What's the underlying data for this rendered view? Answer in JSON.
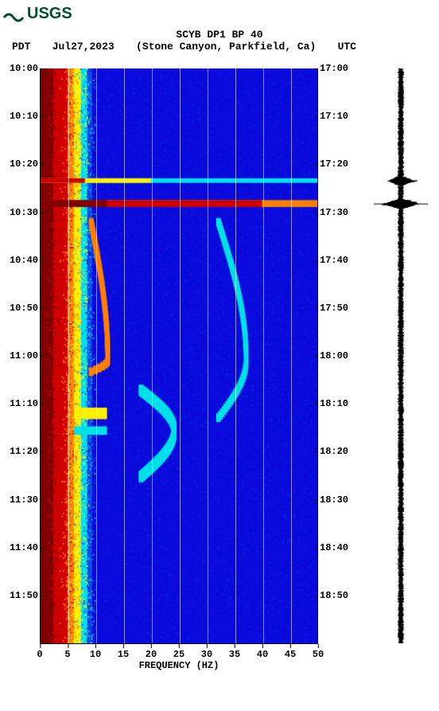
{
  "logo": {
    "text": "USGS",
    "color": "#004d33"
  },
  "header": {
    "title": "SCYB DP1 BP 40",
    "tz_left": "PDT",
    "date": "Jul27,2023",
    "station": "(Stone Canyon, Parkfield, Ca)",
    "tz_right": "UTC"
  },
  "spectrogram": {
    "type": "heatmap",
    "xlabel": "FREQUENCY (HZ)",
    "xlim": [
      0,
      50
    ],
    "xticks": [
      0,
      5,
      10,
      15,
      20,
      25,
      30,
      35,
      40,
      45,
      50
    ],
    "grid_x": [
      5,
      10,
      15,
      20,
      25,
      30,
      35,
      40,
      45
    ],
    "grid_color": "#ffffff",
    "ylim_minutes": [
      0,
      120
    ],
    "left_ticks": [
      {
        "pos": 0.0,
        "label": "10:00"
      },
      {
        "pos": 0.0833,
        "label": "10:10"
      },
      {
        "pos": 0.1667,
        "label": "10:20"
      },
      {
        "pos": 0.25,
        "label": "10:30"
      },
      {
        "pos": 0.3333,
        "label": "10:40"
      },
      {
        "pos": 0.4167,
        "label": "10:50"
      },
      {
        "pos": 0.5,
        "label": "11:00"
      },
      {
        "pos": 0.5833,
        "label": "11:10"
      },
      {
        "pos": 0.6667,
        "label": "11:20"
      },
      {
        "pos": 0.75,
        "label": "11:30"
      },
      {
        "pos": 0.8333,
        "label": "11:40"
      },
      {
        "pos": 0.9167,
        "label": "11:50"
      }
    ],
    "right_ticks": [
      {
        "pos": 0.0,
        "label": "17:00"
      },
      {
        "pos": 0.0833,
        "label": "17:10"
      },
      {
        "pos": 0.1667,
        "label": "17:20"
      },
      {
        "pos": 0.25,
        "label": "17:30"
      },
      {
        "pos": 0.3333,
        "label": "17:40"
      },
      {
        "pos": 0.4167,
        "label": "17:50"
      },
      {
        "pos": 0.5,
        "label": "18:00"
      },
      {
        "pos": 0.5833,
        "label": "18:10"
      },
      {
        "pos": 0.6667,
        "label": "18:20"
      },
      {
        "pos": 0.75,
        "label": "18:30"
      },
      {
        "pos": 0.8333,
        "label": "18:40"
      },
      {
        "pos": 0.9167,
        "label": "18:50"
      }
    ],
    "palette": {
      "bg": "#0a0adc",
      "mid": "#0a50e8",
      "cyan": "#00e0e8",
      "green": "#20d020",
      "yellow": "#fff000",
      "orange": "#ff8000",
      "red": "#d00000",
      "dark_red": "#800000"
    },
    "hot_bands": [
      {
        "t0": 0.0,
        "t1": 1.0,
        "f0": 0,
        "f1": 2.5,
        "c": "dark_red"
      },
      {
        "t0": 0.0,
        "t1": 1.0,
        "f0": 2.0,
        "f1": 5.0,
        "c": "red"
      },
      {
        "t0": 0.0,
        "t1": 1.0,
        "f0": 4.5,
        "f1": 6.2,
        "c": "orange"
      },
      {
        "t0": 0.0,
        "t1": 1.0,
        "f0": 6.0,
        "f1": 7.4,
        "c": "yellow"
      },
      {
        "t0": 0.0,
        "t1": 1.0,
        "f0": 7.2,
        "f1": 8.5,
        "c": "cyan"
      },
      {
        "t0": 0.0,
        "t1": 1.0,
        "f0": 8.5,
        "f1": 50,
        "c": "bg"
      }
    ],
    "events": [
      {
        "t": 0.195,
        "f0": 0,
        "f1": 50,
        "h": 0.008,
        "c": "cyan"
      },
      {
        "t": 0.195,
        "f0": 0,
        "f1": 20,
        "h": 0.008,
        "c": "yellow"
      },
      {
        "t": 0.195,
        "f0": 0,
        "f1": 8,
        "h": 0.008,
        "c": "red"
      },
      {
        "t": 0.235,
        "f0": 0,
        "f1": 50,
        "h": 0.012,
        "c": "orange"
      },
      {
        "t": 0.235,
        "f0": 0,
        "f1": 40,
        "h": 0.012,
        "c": "red"
      },
      {
        "t": 0.235,
        "f0": 0,
        "f1": 12,
        "h": 0.012,
        "c": "dark_red"
      },
      {
        "t": 0.6,
        "f0": 6,
        "f1": 12,
        "h": 0.02,
        "c": "yellow"
      },
      {
        "t": 0.63,
        "f0": 6,
        "f1": 12,
        "h": 0.015,
        "c": "cyan"
      }
    ],
    "gliss": [
      {
        "t0": 0.26,
        "t1": 0.52,
        "peak_t": 0.5,
        "f_start": 9,
        "f_peak": 12,
        "f_end": 9,
        "c": "orange",
        "w": 0.015
      },
      {
        "t0": 0.26,
        "t1": 0.6,
        "peak_t": 0.5,
        "f_start": 32,
        "f_peak": 37,
        "f_end": 30,
        "c": "cyan",
        "w": 0.015
      },
      {
        "t0": 0.55,
        "t1": 0.7,
        "peak_t": 0.62,
        "f_start": 18,
        "f_peak": 24,
        "f_end": 18,
        "c": "cyan",
        "w": 0.02
      }
    ]
  },
  "seismogram": {
    "color": "#000000",
    "baseline_noise": 4,
    "spikes": [
      {
        "t": 0.195,
        "amp": 22
      },
      {
        "t": 0.235,
        "amp": 34
      }
    ]
  }
}
